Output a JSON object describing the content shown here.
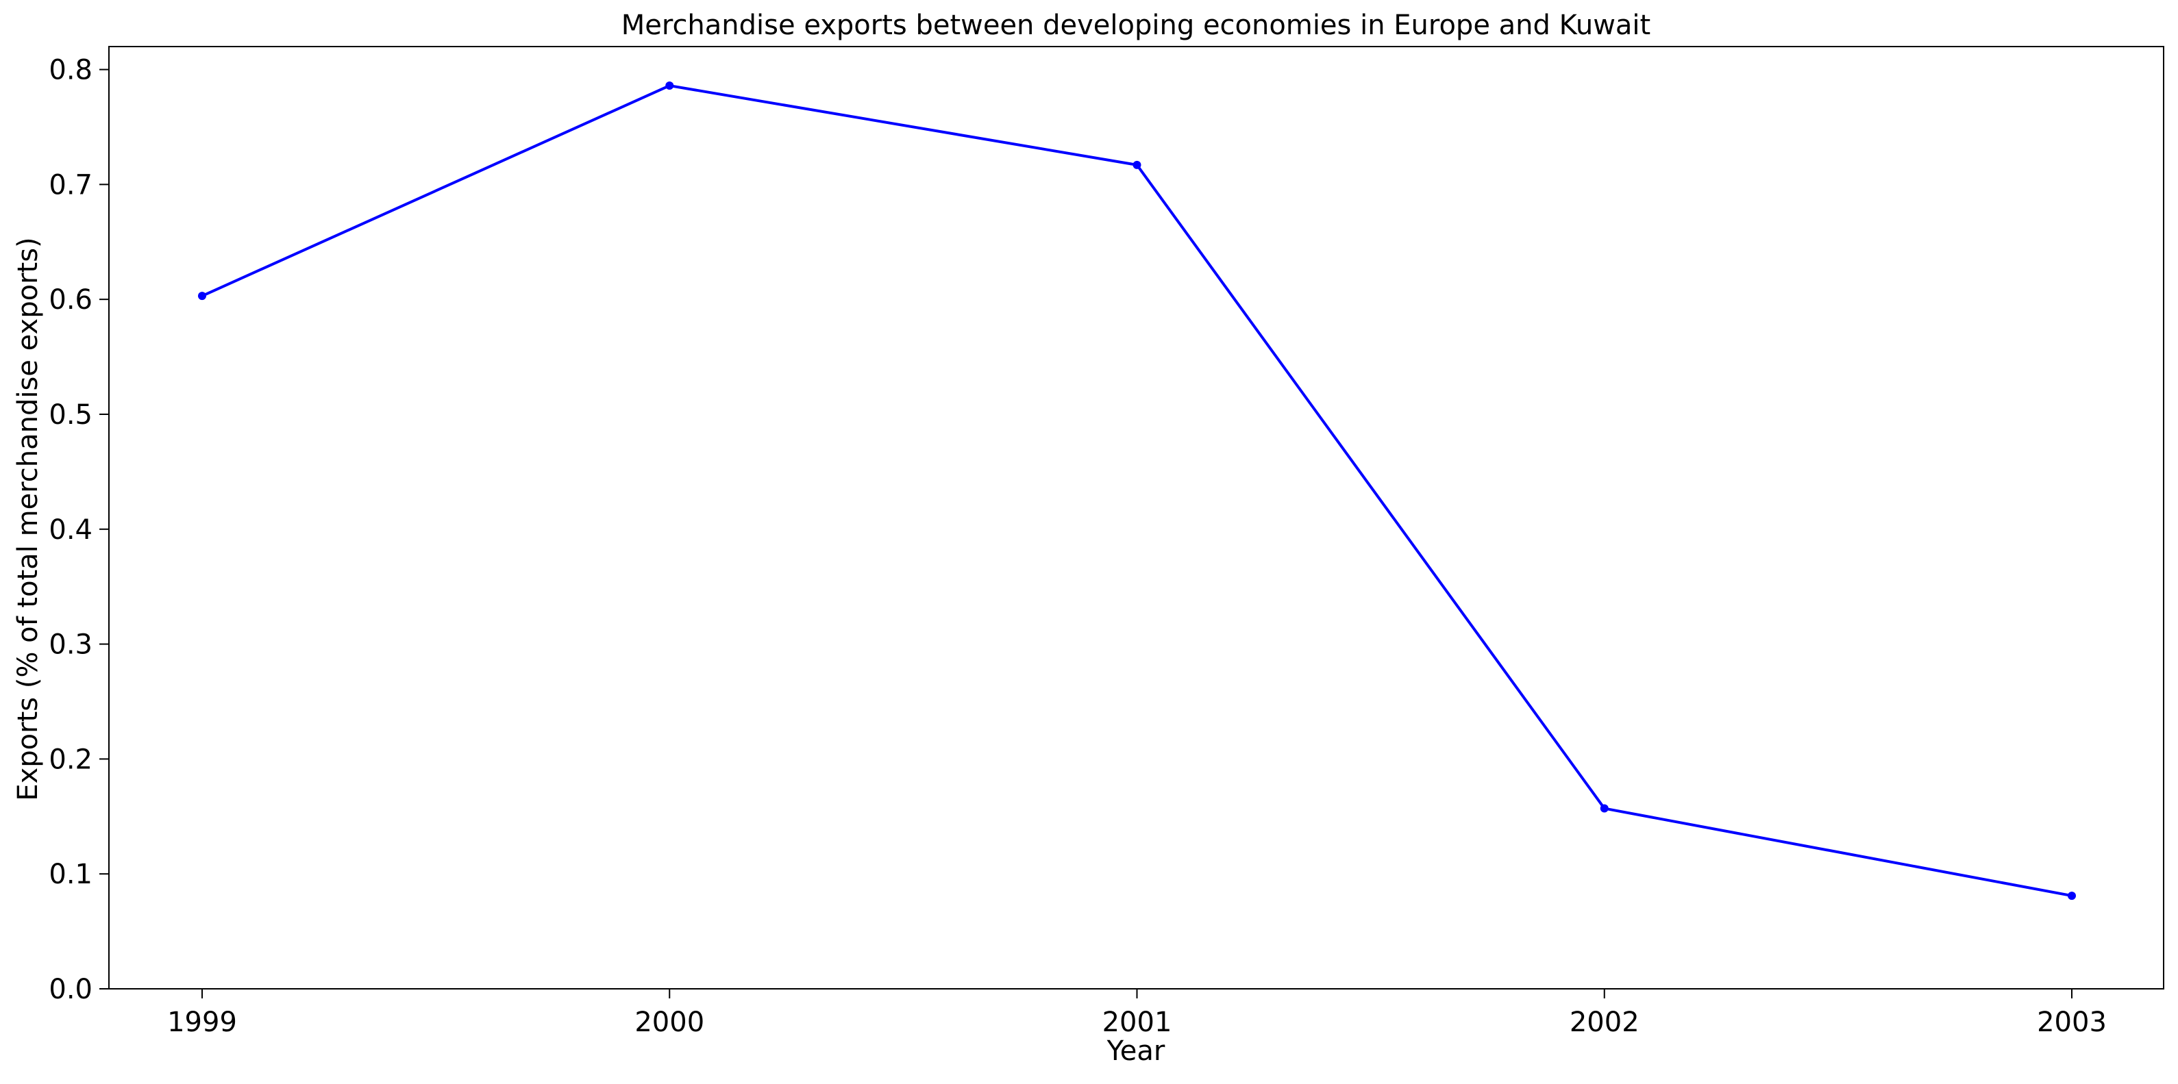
{
  "chart_data": {
    "type": "line",
    "title": "Merchandise exports between developing economies in Europe and Kuwait",
    "xlabel": "Year",
    "ylabel": "Exports (% of total merchandise exports)",
    "x": [
      "1999",
      "2000",
      "2001",
      "2002",
      "2003"
    ],
    "series": [
      {
        "values": [
          0.603,
          0.786,
          0.717,
          0.157,
          0.081
        ],
        "color": "#0000ff",
        "marker": "dot"
      }
    ],
    "ylim": [
      0,
      0.82
    ],
    "yticks": [
      "0.0",
      "0.1",
      "0.2",
      "0.3",
      "0.4",
      "0.5",
      "0.6",
      "0.7",
      "0.8"
    ],
    "grid": false,
    "legend": "none"
  }
}
